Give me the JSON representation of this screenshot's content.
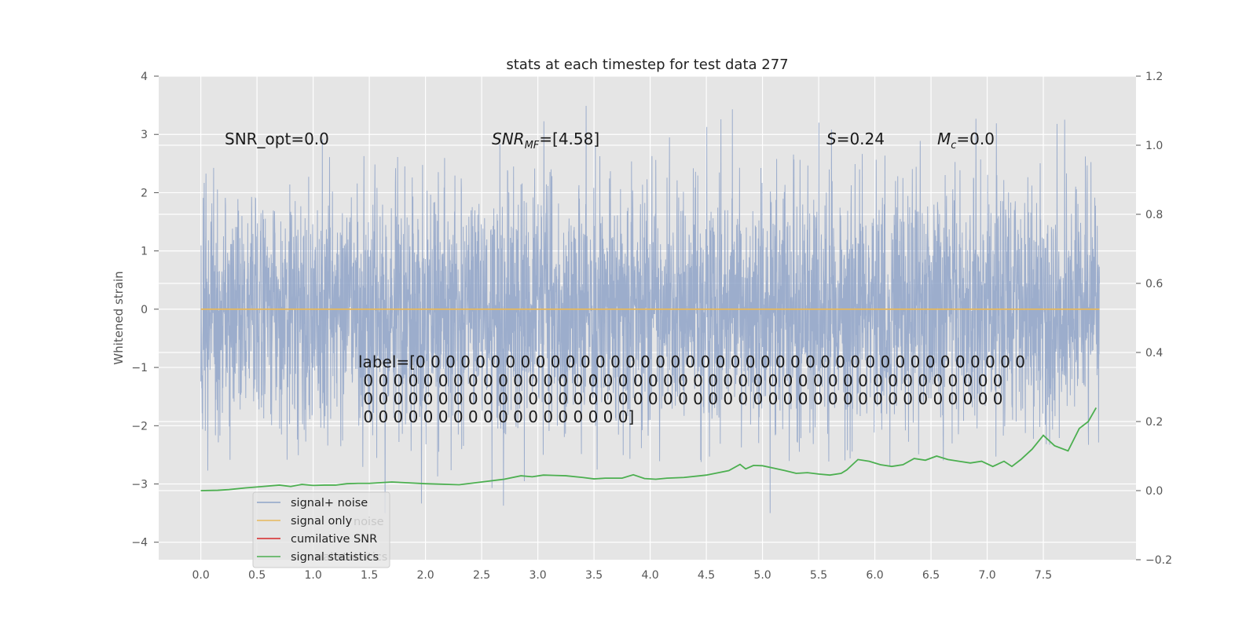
{
  "chart_data": {
    "type": "line",
    "title": "stats at each timestep for test data 277",
    "xlabel": "",
    "ylabel": "Whitened strain",
    "xlim": [
      -0.375,
      8.325
    ],
    "ylim": [
      -4.3,
      4.0
    ],
    "y2lim": [
      -0.2,
      1.2
    ],
    "x_ticks": [
      "0.0",
      "0.5",
      "1.0",
      "1.5",
      "2.0",
      "2.5",
      "3.0",
      "3.5",
      "4.0",
      "4.5",
      "5.0",
      "5.5",
      "6.0",
      "6.5",
      "7.0",
      "7.5"
    ],
    "y_ticks": [
      "4",
      "3",
      "2",
      "1",
      "0",
      "−1",
      "−2",
      "−3",
      "−4"
    ],
    "y2_ticks": [
      "1.2",
      "1.0",
      "0.8",
      "0.6",
      "0.4",
      "0.2",
      "0.0",
      "−0.2"
    ],
    "grid": true,
    "legend_position": "lower-left",
    "series": [
      {
        "name": "signal+ noise",
        "axis": "left",
        "color": "#8fa3c8",
        "description": "dense whitened strain noise, x 0.0 to 8.0",
        "x_range": [
          0.0,
          8.0
        ],
        "typical_band": [
          -1.6,
          1.6
        ],
        "peak_max": 3.65,
        "peak_min": -3.5
      },
      {
        "name": "signal only",
        "axis": "left",
        "color": "#e6b85c",
        "x": [
          0.0,
          8.0
        ],
        "values": [
          0.0,
          0.0
        ]
      },
      {
        "name": "cumilative SNR",
        "axis": "right",
        "color": "#d62728",
        "x": [],
        "values": []
      },
      {
        "name": "signal statistics",
        "axis": "right",
        "color": "#4caf50",
        "x": [
          0.0,
          0.15,
          0.25,
          0.4,
          0.55,
          0.7,
          0.8,
          0.9,
          1.0,
          1.1,
          1.2,
          1.3,
          1.4,
          1.5,
          1.7,
          2.0,
          2.3,
          2.5,
          2.7,
          2.85,
          2.95,
          3.05,
          3.15,
          3.25,
          3.4,
          3.5,
          3.6,
          3.75,
          3.85,
          3.95,
          4.05,
          4.15,
          4.3,
          4.5,
          4.7,
          4.8,
          4.85,
          4.92,
          5.0,
          5.1,
          5.2,
          5.3,
          5.4,
          5.5,
          5.6,
          5.7,
          5.75,
          5.85,
          5.95,
          6.05,
          6.15,
          6.25,
          6.35,
          6.45,
          6.55,
          6.65,
          6.75,
          6.85,
          6.95,
          7.05,
          7.15,
          7.22,
          7.3,
          7.4,
          7.5,
          7.6,
          7.72,
          7.82,
          7.9,
          7.97
        ],
        "values": [
          0.0,
          0.001,
          0.003,
          0.008,
          0.012,
          0.016,
          0.012,
          0.018,
          0.015,
          0.016,
          0.016,
          0.02,
          0.021,
          0.021,
          0.025,
          0.02,
          0.017,
          0.025,
          0.033,
          0.043,
          0.04,
          0.045,
          0.044,
          0.043,
          0.038,
          0.034,
          0.036,
          0.036,
          0.046,
          0.035,
          0.033,
          0.036,
          0.038,
          0.045,
          0.058,
          0.076,
          0.063,
          0.073,
          0.072,
          0.065,
          0.058,
          0.05,
          0.052,
          0.048,
          0.045,
          0.05,
          0.06,
          0.09,
          0.085,
          0.075,
          0.07,
          0.075,
          0.093,
          0.088,
          0.1,
          0.09,
          0.085,
          0.08,
          0.085,
          0.07,
          0.085,
          0.07,
          0.09,
          0.12,
          0.16,
          0.13,
          0.115,
          0.18,
          0.2,
          0.24
        ]
      }
    ],
    "annotations": [
      {
        "text": "SNR_opt=0.0"
      },
      {
        "text": "SNR_MF=[4.58]",
        "main": "SNR",
        "sub": "MF",
        "rest": "=[4.58]"
      },
      {
        "text": "S=0.24",
        "main": "S",
        "rest": "=0.24"
      },
      {
        "text": "M_c=0.0",
        "main": "M",
        "sub": "c",
        "rest": "=0.0"
      },
      {
        "text": "label=[0 0 0 0 0 0 0 0 0 0 0 0 0 0 0 0 0 0 0 0 0 0 0 0 0 0 0 0 0 0 0 0 0 0 0 0 0 0 0 0 0 0 0 0 0 0 0 0 0 0 0 0 0 0 0 0 0 0 0 0 0 0 0 0 0 0 0 0 0 0 0 0 0 0 0 0 0 0 0 0 0 0 0 0 0 0 0 0 0 0 0 0 0 0 0 0 0 0 0 0 0 0 0 0 0 0 0 0 0 0 0 0 0 0 0 0 0 0 0 0 0 0 0 0 0 0 0 0 0 0]",
        "lines": [
          "label=[0 0 0 0 0 0 0 0 0 0 0 0 0 0 0 0 0 0 0 0 0 0 0 0 0 0 0 0 0 0 0 0 0 0 0 0 0 0 0 0 0",
          " 0 0 0 0 0 0 0 0 0 0 0 0 0 0 0 0 0 0 0 0 0 0 0 0 0 0 0 0 0 0 0 0 0 0 0 0 0 0 0 0 0 0 0",
          " 0 0 0 0 0 0 0 0 0 0 0 0 0 0 0 0 0 0 0 0 0 0 0 0 0 0 0 0 0 0 0 0 0 0 0 0 0 0 0 0 0 0 0",
          " 0 0 0 0 0 0 0 0 0 0 0 0 0 0 0 0 0 0]"
        ]
      }
    ],
    "legend_ghost_text": [
      "noise",
      "nal statistics"
    ]
  }
}
